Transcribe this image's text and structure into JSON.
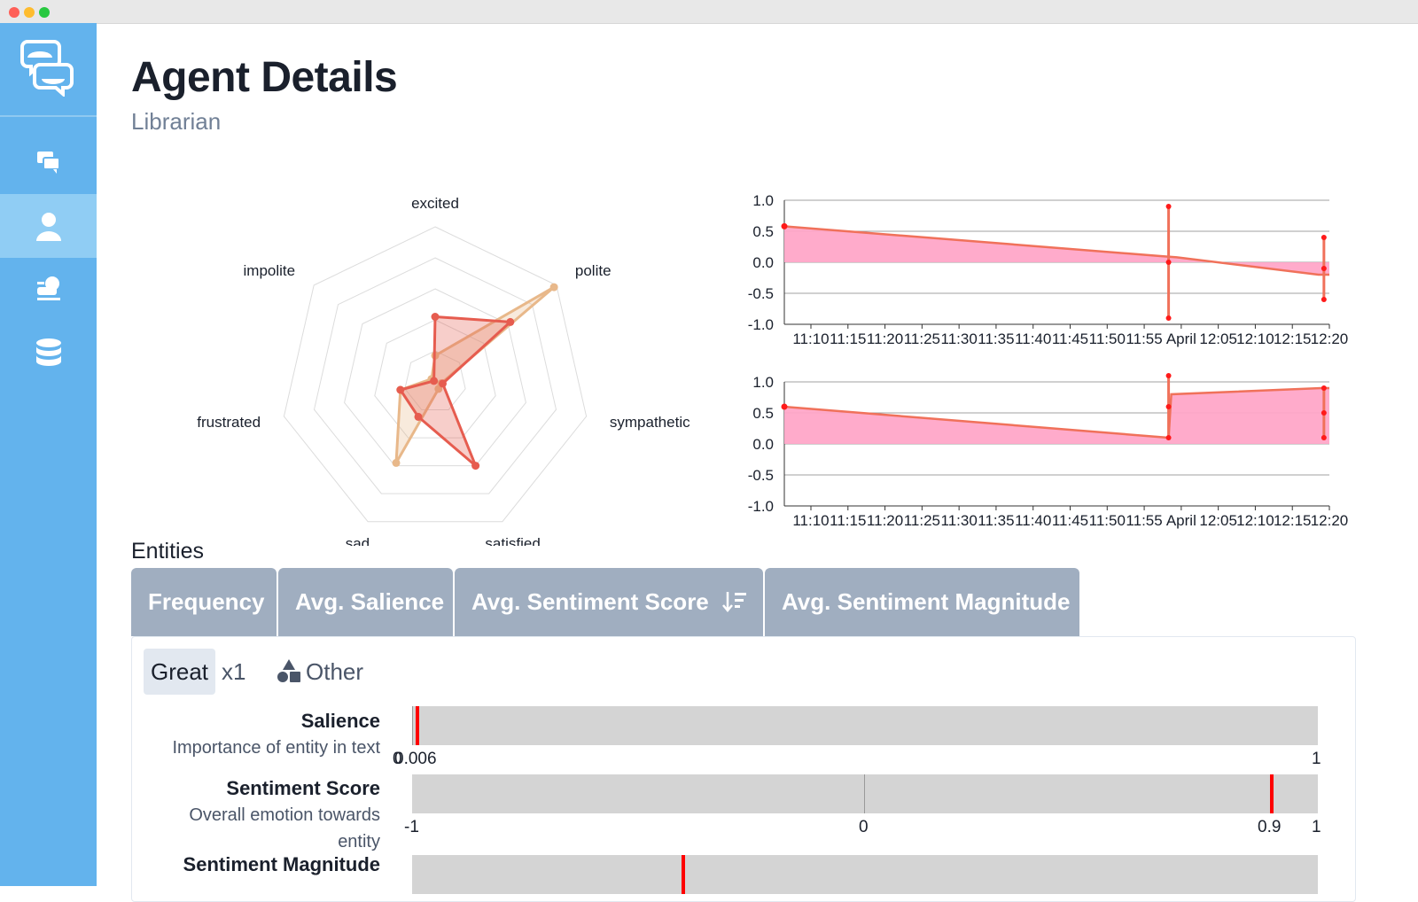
{
  "window": {
    "controls": [
      "close",
      "minimize",
      "zoom"
    ]
  },
  "sidebar": {
    "logo_icon": "chat-bubbles-logo-icon",
    "items": [
      {
        "icon": "conversations-icon",
        "active": false
      },
      {
        "icon": "user-icon",
        "active": true
      },
      {
        "icon": "trainer-icon",
        "active": false
      },
      {
        "icon": "database-icon",
        "active": false
      }
    ]
  },
  "header": {
    "title": "Agent Details",
    "subtitle": "Librarian"
  },
  "radar": {
    "axes": [
      "excited",
      "polite",
      "sympathetic",
      "satisfied",
      "sad",
      "frustrated",
      "impolite"
    ]
  },
  "timeseries": {
    "y_ticks": [
      "1.0",
      "0.5",
      "0.0",
      "-0.5",
      "-1.0"
    ],
    "x_ticks": [
      "11:10",
      "11:15",
      "11:20",
      "11:25",
      "11:30",
      "11:35",
      "11:40",
      "11:45",
      "11:50",
      "11:55",
      "April",
      "12:05",
      "12:10",
      "12:15",
      "12:20"
    ]
  },
  "chart_data": [
    {
      "type": "radar",
      "axes": [
        "excited",
        "polite",
        "sympathetic",
        "satisfied",
        "sad",
        "frustrated",
        "impolite"
      ],
      "range": [
        0,
        1
      ],
      "series": [
        {
          "values": [
            0.17,
            0.98,
            0.04,
            0.05,
            0.58,
            0.23,
            0.03
          ],
          "color": "#e8b88a"
        },
        {
          "values": [
            0.42,
            0.62,
            0.05,
            0.6,
            0.25,
            0.23,
            0.01
          ],
          "color": "#e65c4f"
        }
      ]
    },
    {
      "type": "area",
      "y_ticks": [
        1.0,
        0.5,
        0.0,
        -0.5,
        -1.0
      ],
      "ylim": [
        -1,
        1
      ],
      "x_tick_labels": [
        "11:10",
        "11:15",
        "11:20",
        "11:25",
        "11:30",
        "11:35",
        "11:40",
        "11:45",
        "11:50",
        "11:55",
        "April",
        "12:05",
        "12:10",
        "12:15",
        "12:20"
      ],
      "points": [
        [
          0,
          0.58
        ],
        [
          0.69,
          0.1
        ],
        [
          0.72,
          0.08
        ],
        [
          0.98,
          -0.2
        ],
        [
          1.0,
          -0.2
        ]
      ],
      "spikes": [
        [
          0.705,
          -0.9,
          0.9
        ],
        [
          0.99,
          -0.6,
          0.4
        ]
      ],
      "fill": "#ffa7c8",
      "line": "#f0715a"
    },
    {
      "type": "area",
      "y_ticks": [
        1.0,
        0.5,
        0.0,
        -0.5,
        -1.0
      ],
      "ylim": [
        -1,
        1
      ],
      "x_tick_labels": [
        "11:10",
        "11:15",
        "11:20",
        "11:25",
        "11:30",
        "11:35",
        "11:40",
        "11:45",
        "11:50",
        "11:55",
        "April",
        "12:05",
        "12:10",
        "12:15",
        "12:20"
      ],
      "points": [
        [
          0,
          0.6
        ],
        [
          0.705,
          0.1
        ],
        [
          0.71,
          0.8
        ],
        [
          0.985,
          0.9
        ],
        [
          1.0,
          0.9
        ]
      ],
      "spikes": [
        [
          0.705,
          0.1,
          1.1
        ],
        [
          0.99,
          0.1,
          0.9
        ]
      ],
      "fill": "#ffa7c8",
      "line": "#f0715a"
    }
  ],
  "entities": {
    "title": "Entities",
    "tabs": [
      {
        "label": "Frequency"
      },
      {
        "label": "Avg. Salience"
      },
      {
        "label": "Avg. Sentiment Score",
        "icon": "sort-descending-icon"
      },
      {
        "label": "Avg. Sentiment Magnitude"
      }
    ],
    "item": {
      "name": "Great",
      "count": "x1",
      "type": "Other",
      "type_icon": "shapes-icon",
      "metrics": [
        {
          "label": "Salience",
          "description": "Importance of entity in text",
          "value": 0.006,
          "axis_min": "0",
          "axis_value": "0.006",
          "axis_max": "1",
          "range": [
            0,
            1
          ]
        },
        {
          "label": "Sentiment Score",
          "description": "Overall emotion towards entity",
          "value": 0.9,
          "axis_min": "-1",
          "axis_mid": "0",
          "axis_value": "0.9",
          "axis_max": "1",
          "range": [
            -1,
            1
          ]
        },
        {
          "label": "Sentiment Magnitude",
          "value": 0.3
        }
      ]
    }
  }
}
